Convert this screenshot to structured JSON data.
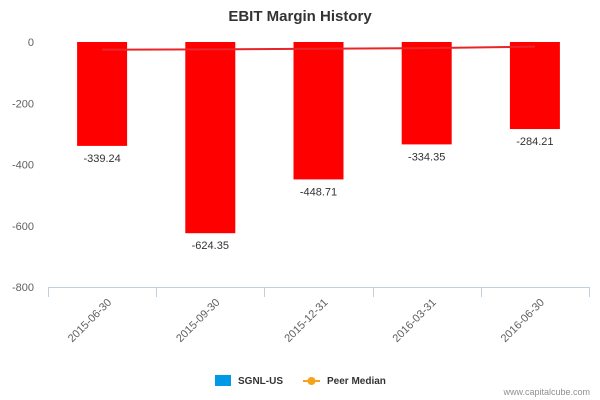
{
  "chart_data": {
    "type": "bar",
    "title": "EBIT Margin History",
    "categories": [
      "2015-06-30",
      "2015-09-30",
      "2015-12-31",
      "2016-03-31",
      "2016-06-30"
    ],
    "series": [
      {
        "name": "SGNL-US",
        "type": "bar",
        "values": [
          -339.24,
          -624.35,
          -448.71,
          -334.35,
          -284.21
        ],
        "data_labels": [
          "-339.24",
          "-624.35",
          "-448.71",
          "-334.35",
          "-284.21"
        ],
        "color": "#ff0000",
        "legend_color": "#0099e6"
      },
      {
        "name": "Peer Median",
        "type": "line",
        "values": [
          -25,
          -24,
          -22,
          -20,
          -15
        ],
        "color": "#e8262a",
        "legend_color": "#f7a21b"
      }
    ],
    "ylim": [
      -800,
      0
    ],
    "yticks": [
      0,
      -200,
      -400,
      -600,
      -800
    ],
    "ytick_labels": [
      "0",
      "-200",
      "-400",
      "-600",
      "-800"
    ],
    "grid": false,
    "legend_position": "bottom-center"
  },
  "credit": "www.capitalcube.com"
}
